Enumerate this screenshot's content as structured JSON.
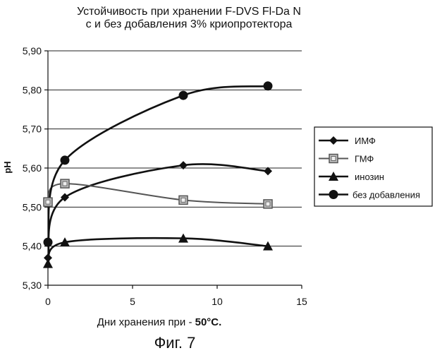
{
  "chart_data": {
    "type": "line",
    "title": "Устойчивость при хранении F-DVS Fl-Da N",
    "subtitle": "с и без добавления 3% криопротектора",
    "xlabel_main": "Дни хранения при - ",
    "xlabel_bold": "50°C.",
    "ylabel": "pH",
    "caption": "Фиг. 7",
    "xlim": [
      0,
      15
    ],
    "ylim": [
      5.3,
      5.9
    ],
    "xticks": [
      "0",
      "5",
      "10",
      "15"
    ],
    "yticks": [
      "5,30",
      "5,40",
      "5,50",
      "5,60",
      "5,70",
      "5,80",
      "5,90"
    ],
    "grid": "horizontal",
    "legend_position": "right",
    "series": [
      {
        "name": "ИМФ",
        "marker": "diamond",
        "color": "#111111",
        "x": [
          0,
          1,
          8,
          13
        ],
        "y": [
          5.37,
          5.525,
          5.607,
          5.592
        ]
      },
      {
        "name": "ГМФ",
        "marker": "square",
        "color": "#888888",
        "x": [
          0,
          1,
          8,
          13
        ],
        "y": [
          5.513,
          5.56,
          5.518,
          5.508
        ]
      },
      {
        "name": "инозин",
        "marker": "triangle",
        "color": "#111111",
        "x": [
          0,
          1,
          8,
          13
        ],
        "y": [
          5.355,
          5.41,
          5.42,
          5.4
        ]
      },
      {
        "name": "без добавления",
        "marker": "circle",
        "color": "#111111",
        "x": [
          0,
          1,
          8,
          13
        ],
        "y": [
          5.41,
          5.62,
          5.786,
          5.81
        ]
      }
    ]
  }
}
